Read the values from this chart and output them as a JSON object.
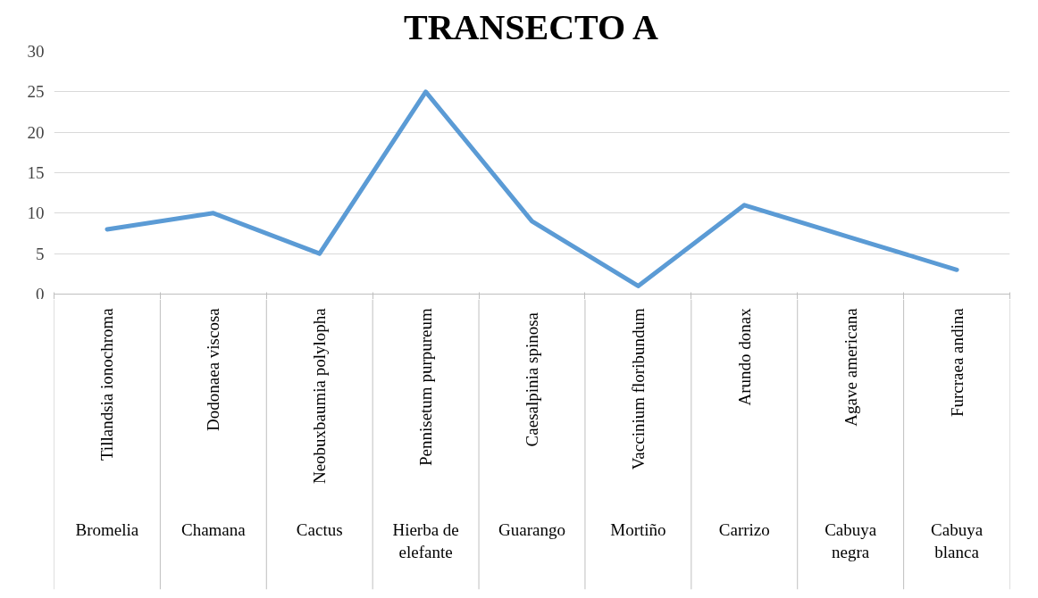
{
  "chart_data": {
    "type": "line",
    "title": "TRANSECTO A",
    "categories": [
      "Tillandsia ionochroma\nBromelia",
      "Dodonaea viscosa\nChamana",
      "Neobuxbaumia polylopha\nCactus",
      "Pennisetum purpureum\nHierba de\nelefante",
      "Caesalpinia  spinosa\nGuarango",
      "Vaccinium floribundum\nMortiño",
      "Arundo donax\nCarrizo",
      "Agave americana\nCabuya\nnegra",
      "Furcraea andina\nCabuya\nblanca"
    ],
    "series": [
      {
        "color": "#5b9bd5",
        "values": [
          8,
          10,
          5,
          25,
          9,
          1,
          11,
          7,
          3
        ]
      }
    ],
    "ylim": [
      0,
      30
    ],
    "yticks": [
      0,
      5,
      10,
      15,
      20,
      25,
      30
    ],
    "grid": "y"
  }
}
